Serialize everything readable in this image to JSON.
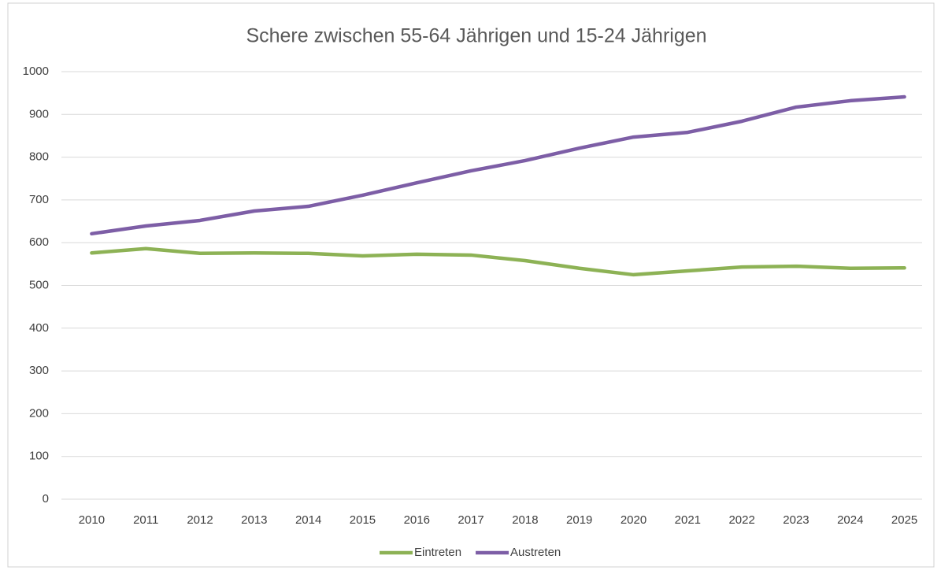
{
  "chart_data": {
    "type": "line",
    "title": "Schere zwischen 55-64 Jährigen und 15-24 Jährigen",
    "categories": [
      "2010",
      "2011",
      "2012",
      "2013",
      "2014",
      "2015",
      "2016",
      "2017",
      "2018",
      "2019",
      "2020",
      "2021",
      "2022",
      "2023",
      "2024",
      "2025"
    ],
    "series": [
      {
        "name": "Eintreten",
        "color": "#8db255",
        "values": [
          576,
          586,
          575,
          576,
          575,
          569,
          573,
          571,
          558,
          540,
          525,
          534,
          543,
          545,
          540,
          541
        ]
      },
      {
        "name": "Austreten",
        "color": "#7d5ea6",
        "values": [
          621,
          639,
          652,
          674,
          685,
          711,
          740,
          768,
          792,
          821,
          847,
          858,
          884,
          917,
          932,
          941
        ]
      }
    ],
    "ylim": [
      0,
      1000
    ],
    "yticks": [
      0,
      100,
      200,
      300,
      400,
      500,
      600,
      700,
      800,
      900,
      1000
    ],
    "grid": true,
    "legend": "bottom"
  }
}
